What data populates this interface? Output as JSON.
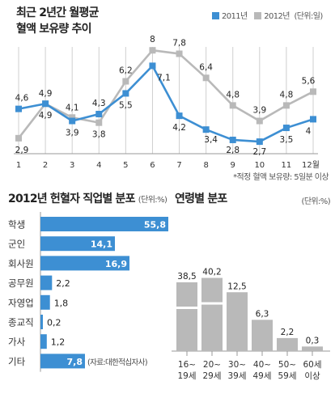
{
  "colors": {
    "blue": "#3d8fd3",
    "gray": "#b9b9b9",
    "dark": "#222222"
  },
  "line_chart": {
    "title_line1": "최근 2년간 월평균",
    "title_line2": "혈액 보유량 추이",
    "unit": "(단위:일)",
    "footnote": "*적정 혈액 보유량: 5일분 이상",
    "chart_data": {
      "type": "line",
      "x": [
        "1",
        "2",
        "3",
        "4",
        "5",
        "6",
        "7",
        "8",
        "9",
        "10",
        "11",
        "12월"
      ],
      "series": [
        {
          "name": "2011년",
          "color": "#3d8fd3",
          "values": [
            4.6,
            4.9,
            3.9,
            4.3,
            5.5,
            7.1,
            4.2,
            3.4,
            2.8,
            2.7,
            3.5,
            4.0
          ]
        },
        {
          "name": "2012년",
          "color": "#b9b9b9",
          "values": [
            2.9,
            4.9,
            4.1,
            3.8,
            6.2,
            8.0,
            7.8,
            6.4,
            4.8,
            3.9,
            4.8,
            5.6
          ]
        }
      ],
      "ylim": [
        2.0,
        8.5
      ]
    }
  },
  "job_chart": {
    "title": "2012년 헌혈자 직업별 분포",
    "unit": "(단위:%)",
    "source": "(자료:대한적십자사)",
    "chart_data": {
      "type": "bar",
      "categories": [
        "학생",
        "군인",
        "회사원",
        "공무원",
        "자영업",
        "종교직",
        "가사",
        "기타"
      ],
      "values": [
        55.8,
        14.1,
        16.9,
        2.2,
        1.8,
        0.2,
        1.2,
        7.8
      ]
    }
  },
  "age_chart": {
    "title": "연령별 분포",
    "unit": "(단위:%)",
    "chart_data": {
      "type": "bar",
      "categories": [
        [
          "16~",
          "19세"
        ],
        [
          "20~",
          "29세"
        ],
        [
          "30~",
          "39세"
        ],
        [
          "40~",
          "49세"
        ],
        [
          "50~",
          "59세"
        ],
        [
          "60세",
          "이상"
        ]
      ],
      "values": [
        38.5,
        40.2,
        12.5,
        6.3,
        2.2,
        0.3
      ],
      "axis_break": true
    }
  }
}
